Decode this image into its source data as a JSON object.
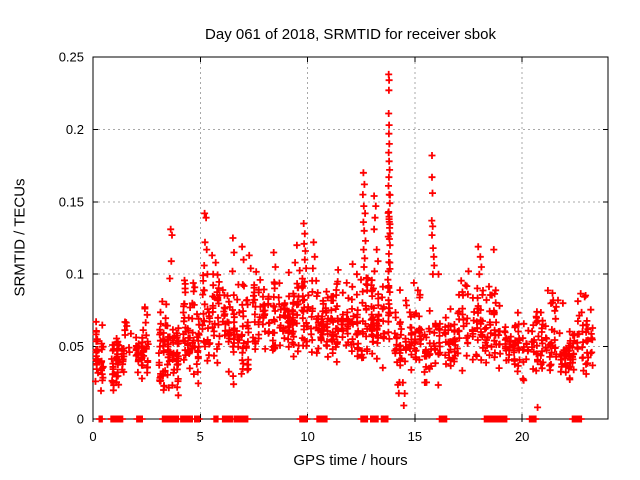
{
  "chart_data": {
    "type": "scatter",
    "title": "Day 061 of 2018, SRMTID for receiver sbok",
    "xlabel": "GPS time / hours",
    "ylabel": "SRMTID / TECUs",
    "xlim": [
      0,
      24
    ],
    "ylim": [
      0,
      0.25
    ],
    "xticks": [
      0,
      5,
      10,
      15,
      20
    ],
    "yticks": [
      0,
      0.05,
      0.1,
      0.15,
      0.2,
      0.25
    ],
    "ytick_labels": [
      "0",
      "0.05",
      "0.1",
      "0.15",
      "0.2",
      "0.25"
    ],
    "grid": {
      "show": true,
      "color": "#a8a8a8",
      "dash": "2,3"
    },
    "axis_color": "#000000",
    "text_color": "#000000",
    "background": "#ffffff",
    "legend": null,
    "marker": {
      "shape": "plus",
      "color": "#ff0000",
      "size": 7,
      "stroke_width": 1.8
    },
    "seed": 20180061,
    "clusters": [
      [
        0.05,
        0.55,
        0.015,
        0.065,
        34,
        "m"
      ],
      [
        0.1,
        0.5,
        0.055,
        0.068,
        5,
        "u"
      ],
      [
        0.8,
        1.5,
        0.018,
        0.06,
        46,
        "m"
      ],
      [
        1.45,
        1.8,
        0.045,
        0.075,
        8,
        "u"
      ],
      [
        1.95,
        2.65,
        0.022,
        0.068,
        40,
        "m"
      ],
      [
        2.1,
        2.6,
        0.065,
        0.078,
        4,
        "u"
      ],
      [
        3.0,
        4.05,
        0.012,
        0.075,
        78,
        "m"
      ],
      [
        3.1,
        3.5,
        0.06,
        0.09,
        6,
        "u"
      ],
      [
        4.15,
        5.0,
        0.02,
        0.098,
        60,
        "m"
      ],
      [
        5.05,
        5.95,
        0.03,
        0.105,
        52,
        "m"
      ],
      [
        6.0,
        7.3,
        0.02,
        0.1,
        80,
        "m"
      ],
      [
        7.4,
        8.55,
        0.04,
        0.105,
        62,
        "m"
      ],
      [
        8.6,
        9.65,
        0.04,
        0.102,
        66,
        "m"
      ],
      [
        9.7,
        10.1,
        0.05,
        0.1,
        26,
        "u"
      ],
      [
        10.1,
        11.25,
        0.038,
        0.098,
        70,
        "m"
      ],
      [
        11.25,
        12.45,
        0.035,
        0.098,
        66,
        "m"
      ],
      [
        12.45,
        12.85,
        0.04,
        0.1,
        22,
        "u"
      ],
      [
        12.9,
        13.65,
        0.035,
        0.1,
        48,
        "m"
      ],
      [
        13.65,
        13.95,
        0.055,
        0.1,
        14,
        "u"
      ],
      [
        13.7,
        13.9,
        0.1,
        0.16,
        9,
        "u"
      ],
      [
        14.0,
        15.35,
        0.028,
        0.075,
        62,
        "m"
      ],
      [
        14.05,
        15.3,
        0.072,
        0.095,
        8,
        "u"
      ],
      [
        13.4,
        14.6,
        0.008,
        0.026,
        6,
        "u"
      ],
      [
        15.4,
        16.25,
        0.02,
        0.08,
        40,
        "m"
      ],
      [
        16.3,
        17.55,
        0.028,
        0.092,
        58,
        "m"
      ],
      [
        17.6,
        19.05,
        0.03,
        0.096,
        74,
        "m"
      ],
      [
        19.1,
        20.35,
        0.025,
        0.075,
        56,
        "m"
      ],
      [
        20.4,
        21.65,
        0.028,
        0.078,
        58,
        "m"
      ],
      [
        20.9,
        21.5,
        0.075,
        0.09,
        5,
        "u"
      ],
      [
        21.7,
        22.5,
        0.025,
        0.065,
        45,
        "m"
      ],
      [
        22.5,
        23.35,
        0.028,
        0.082,
        38,
        "m"
      ],
      [
        22.6,
        23.0,
        0.08,
        0.09,
        3,
        "u"
      ],
      [
        7.5,
        13.3,
        0.09,
        0.103,
        10,
        "u"
      ],
      [
        16.4,
        19.0,
        0.09,
        0.1,
        4,
        "u"
      ]
    ],
    "high_points": [
      [
        3.62,
        0.131
      ],
      [
        3.68,
        0.127
      ],
      [
        3.65,
        0.109
      ],
      [
        3.58,
        0.097
      ],
      [
        5.2,
        0.142
      ],
      [
        5.27,
        0.139
      ],
      [
        5.22,
        0.122
      ],
      [
        5.3,
        0.117
      ],
      [
        5.18,
        0.106
      ],
      [
        5.33,
        0.1
      ],
      [
        5.55,
        0.113
      ],
      [
        5.72,
        0.108
      ],
      [
        5.6,
        0.1
      ],
      [
        6.52,
        0.125
      ],
      [
        6.57,
        0.115
      ],
      [
        6.5,
        0.102
      ],
      [
        6.95,
        0.119
      ],
      [
        7.02,
        0.11
      ],
      [
        7.28,
        0.113
      ],
      [
        7.35,
        0.104
      ],
      [
        8.42,
        0.115
      ],
      [
        8.5,
        0.105
      ],
      [
        9.5,
        0.12
      ],
      [
        9.42,
        0.108
      ],
      [
        9.82,
        0.135
      ],
      [
        9.87,
        0.128
      ],
      [
        9.84,
        0.121
      ],
      [
        9.9,
        0.116
      ],
      [
        9.87,
        0.11
      ],
      [
        9.93,
        0.104
      ],
      [
        10.28,
        0.122
      ],
      [
        10.33,
        0.112
      ],
      [
        10.25,
        0.104
      ],
      [
        11.42,
        0.103
      ],
      [
        12.1,
        0.107
      ],
      [
        12.3,
        0.1
      ],
      [
        12.6,
        0.17
      ],
      [
        12.65,
        0.162
      ],
      [
        12.58,
        0.155
      ],
      [
        12.62,
        0.147
      ],
      [
        12.68,
        0.142
      ],
      [
        12.6,
        0.136
      ],
      [
        12.64,
        0.13
      ],
      [
        12.7,
        0.123
      ],
      [
        12.61,
        0.117
      ],
      [
        12.66,
        0.111
      ],
      [
        12.63,
        0.105
      ],
      [
        13.1,
        0.154
      ],
      [
        13.18,
        0.147
      ],
      [
        13.14,
        0.139
      ],
      [
        13.1,
        0.131
      ],
      [
        13.22,
        0.117
      ],
      [
        13.28,
        0.109
      ],
      [
        13.12,
        0.102
      ],
      [
        13.78,
        0.238
      ],
      [
        13.8,
        0.234
      ],
      [
        13.79,
        0.227
      ],
      [
        13.78,
        0.211
      ],
      [
        13.8,
        0.203
      ],
      [
        13.79,
        0.197
      ],
      [
        13.81,
        0.19
      ],
      [
        13.78,
        0.184
      ],
      [
        13.8,
        0.178
      ],
      [
        13.82,
        0.172
      ],
      [
        13.79,
        0.167
      ],
      [
        13.77,
        0.161
      ],
      [
        13.81,
        0.155
      ],
      [
        13.83,
        0.149
      ],
      [
        13.78,
        0.143
      ],
      [
        13.8,
        0.138
      ],
      [
        13.82,
        0.132
      ],
      [
        13.76,
        0.126
      ],
      [
        13.84,
        0.12
      ],
      [
        13.79,
        0.114
      ],
      [
        13.83,
        0.108
      ],
      [
        13.77,
        0.102
      ],
      [
        15.8,
        0.182
      ],
      [
        15.8,
        0.167
      ],
      [
        15.82,
        0.156
      ],
      [
        15.79,
        0.137
      ],
      [
        15.83,
        0.133
      ],
      [
        15.8,
        0.127
      ],
      [
        15.85,
        0.118
      ],
      [
        15.88,
        0.112
      ],
      [
        15.9,
        0.106
      ],
      [
        15.84,
        0.1
      ],
      [
        16.1,
        0.1
      ],
      [
        17.5,
        0.102
      ],
      [
        17.95,
        0.119
      ],
      [
        18.05,
        0.112
      ],
      [
        18.1,
        0.105
      ],
      [
        18.0,
        0.1
      ],
      [
        18.68,
        0.117
      ],
      [
        20.72,
        0.008
      ],
      [
        21.9,
        0.08
      ],
      [
        21.67,
        0.082
      ]
    ],
    "zero_runs": [
      [
        0.3,
        0.45
      ],
      [
        0.85,
        1.4
      ],
      [
        2.05,
        2.3
      ],
      [
        3.25,
        4.0
      ],
      [
        4.1,
        4.65
      ],
      [
        4.75,
        4.95
      ],
      [
        5.65,
        5.85
      ],
      [
        6.05,
        6.5
      ],
      [
        6.6,
        7.2
      ],
      [
        9.65,
        10.0
      ],
      [
        10.45,
        10.9
      ],
      [
        12.5,
        12.8
      ],
      [
        12.95,
        13.3
      ],
      [
        13.45,
        13.75
      ],
      [
        16.15,
        16.5
      ],
      [
        18.25,
        18.9
      ],
      [
        18.95,
        19.3
      ],
      [
        20.35,
        20.65
      ],
      [
        22.35,
        22.75
      ]
    ],
    "zero_run_step": 0.04
  }
}
